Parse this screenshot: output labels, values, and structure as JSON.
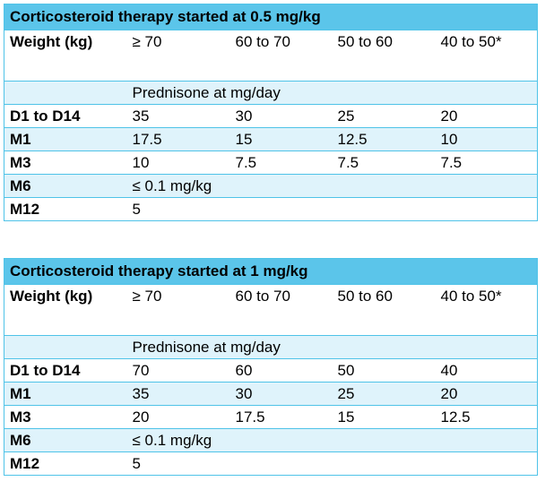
{
  "tables": [
    {
      "title": "Corticosteroid therapy started at 0.5 mg/kg",
      "weight_label": "Weight (kg)",
      "weights": [
        "≥ 70",
        "60 to 70",
        "50 to 60",
        "40 to 50*"
      ],
      "subheader": "Prednisone at mg/day",
      "rows": [
        {
          "label": "D1 to D14",
          "values": [
            "35",
            "30",
            "25",
            "20"
          ]
        },
        {
          "label": "M1",
          "values": [
            "17.5",
            "15",
            "12.5",
            "10"
          ]
        },
        {
          "label": "M3",
          "values": [
            "10",
            "7.5",
            "7.5",
            "7.5"
          ]
        },
        {
          "label": "M6",
          "values": [
            "≤ 0.1 mg/kg",
            "",
            "",
            ""
          ]
        },
        {
          "label": "M12",
          "values": [
            "5",
            "",
            "",
            ""
          ]
        }
      ]
    },
    {
      "title": "Corticosteroid therapy started at 1 mg/kg",
      "weight_label": "Weight (kg)",
      "weights": [
        "≥ 70",
        "60 to 70",
        "50 to 60",
        "40 to 50*"
      ],
      "subheader": "Prednisone at mg/day",
      "rows": [
        {
          "label": "D1 to D14",
          "values": [
            "70",
            "60",
            "50",
            "40"
          ]
        },
        {
          "label": "M1",
          "values": [
            "35",
            "30",
            "25",
            "20"
          ]
        },
        {
          "label": "M3",
          "values": [
            "20",
            "17.5",
            "15",
            "12.5"
          ]
        },
        {
          "label": "M6",
          "values": [
            "≤ 0.1 mg/kg",
            "",
            "",
            ""
          ]
        },
        {
          "label": "M12",
          "values": [
            "5",
            "",
            "",
            ""
          ]
        }
      ]
    }
  ],
  "colors": {
    "header_bg": "#5bc5ea",
    "alt_bg": "#dff3fb",
    "border": "#4fc3e8"
  }
}
